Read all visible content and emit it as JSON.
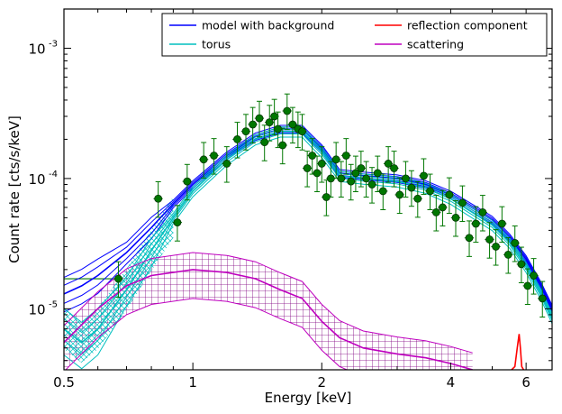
{
  "chart_data": {
    "type": "line",
    "xlabel": "Energy [keV]",
    "ylabel": "Count rate [cts/s/keV]",
    "xscale": "log",
    "yscale": "log",
    "xlim": [
      0.5,
      6.9
    ],
    "ylim": [
      3.4e-06,
      0.002
    ],
    "x_ticks": [
      {
        "value": 0.5,
        "label": "0.5"
      },
      {
        "value": 1,
        "label": "1"
      },
      {
        "value": 2,
        "label": "2"
      },
      {
        "value": 4,
        "label": "4"
      },
      {
        "value": 6,
        "label": "6"
      }
    ],
    "y_ticks": [
      {
        "value": 1e-05,
        "label": "10",
        "exp": "-5"
      },
      {
        "value": 0.0001,
        "label": "10",
        "exp": "-4"
      },
      {
        "value": 0.001,
        "label": "10",
        "exp": "-3"
      }
    ],
    "legend": {
      "placement": "top-right",
      "columns": 2,
      "entries": [
        {
          "label": "model with background",
          "color": "#0000ff"
        },
        {
          "label": "reflection component",
          "color": "#ff0000"
        },
        {
          "label": "torus",
          "color": "#00bfbf"
        },
        {
          "label": "scattering",
          "color": "#bf00bf"
        }
      ]
    },
    "colors": {
      "data": "#007700",
      "data_edge": "#003300",
      "hatch": "#800080"
    },
    "series": [
      {
        "name": "model with background",
        "color": "#0000ff",
        "x": [
          0.5,
          0.55,
          0.6,
          0.7,
          0.8,
          0.9,
          1.0,
          1.2,
          1.4,
          1.6,
          1.8,
          1.9,
          2.0,
          2.2,
          2.5,
          3.0,
          3.5,
          4.0,
          5.0,
          5.5,
          6.0,
          6.5,
          6.9
        ],
        "y": [
          1.3e-05,
          1.5e-05,
          1.8e-05,
          2.7e-05,
          4.2e-05,
          6.4e-05,
          9e-05,
          0.00015,
          0.00021,
          0.00024,
          0.00024,
          0.0002,
          0.00017,
          0.00011,
          0.000105,
          0.0001,
          9e-05,
          7.5e-05,
          4.8e-05,
          3.5e-05,
          2.4e-05,
          1.5e-05,
          1e-05
        ]
      },
      {
        "name": "torus",
        "color": "#00bfbf",
        "x": [
          0.5,
          0.55,
          0.6,
          0.7,
          0.8,
          0.9,
          1.0,
          1.2,
          1.4,
          1.6,
          1.8,
          1.9,
          2.0,
          2.2,
          2.5,
          3.0,
          3.5,
          4.0,
          5.0,
          5.5,
          6.0,
          6.5,
          6.9
        ],
        "y": [
          7e-06,
          5.5e-06,
          7e-06,
          1.4e-05,
          2.8e-05,
          5e-05,
          8e-05,
          0.00014,
          0.0002,
          0.00023,
          0.00023,
          0.00019,
          0.00016,
          0.000105,
          0.0001,
          9.5e-05,
          8.5e-05,
          7e-05,
          4.4e-05,
          3.2e-05,
          2.1e-05,
          1.3e-05,
          8.5e-06
        ]
      },
      {
        "name": "scattering",
        "color": "#bf00bf",
        "x": [
          0.5,
          0.6,
          0.7,
          0.8,
          1.0,
          1.2,
          1.4,
          1.6,
          1.8,
          2.0,
          2.2,
          2.5,
          3.0,
          3.5,
          4.0,
          4.5
        ],
        "y": [
          5.5e-06,
          1e-05,
          1.5e-05,
          1.8e-05,
          2e-05,
          1.9e-05,
          1.7e-05,
          1.4e-05,
          1.2e-05,
          8e-06,
          6e-06,
          5e-06,
          4.5e-06,
          4.2e-06,
          3.8e-06,
          3.4e-06
        ]
      },
      {
        "name": "reflection component",
        "color": "#ff0000",
        "x": [
          5.55,
          5.65,
          5.72,
          5.78,
          5.82,
          5.86,
          5.92
        ],
        "y": [
          3.4e-06,
          3.6e-06,
          5e-06,
          6.4e-06,
          5e-06,
          3.6e-06,
          3.4e-06
        ]
      }
    ],
    "data_points": {
      "x": [
        0.67,
        0.83,
        0.92,
        0.97,
        1.06,
        1.12,
        1.2,
        1.27,
        1.33,
        1.38,
        1.43,
        1.47,
        1.51,
        1.55,
        1.58,
        1.62,
        1.66,
        1.71,
        1.76,
        1.8,
        1.85,
        1.9,
        1.95,
        2.0,
        2.05,
        2.1,
        2.16,
        2.22,
        2.28,
        2.34,
        2.4,
        2.47,
        2.54,
        2.62,
        2.7,
        2.78,
        2.86,
        2.95,
        3.04,
        3.14,
        3.24,
        3.35,
        3.46,
        3.58,
        3.7,
        3.83,
        3.97,
        4.11,
        4.26,
        4.42,
        4.58,
        4.75,
        4.93,
        5.1,
        5.27,
        5.45,
        5.65,
        5.85,
        6.05,
        6.25,
        6.55
      ],
      "y": [
        1.7e-05,
        7e-05,
        4.6e-05,
        9.5e-05,
        0.00014,
        0.00015,
        0.00013,
        0.0002,
        0.00023,
        0.00026,
        0.00029,
        0.00019,
        0.00027,
        0.0003,
        0.00024,
        0.00018,
        0.00033,
        0.00026,
        0.00024,
        0.00023,
        0.00012,
        0.00015,
        0.00011,
        0.00013,
        7.2e-05,
        0.0001,
        0.00014,
        0.0001,
        0.00015,
        9.5e-05,
        0.00011,
        0.00012,
        0.0001,
        9e-05,
        0.00011,
        8e-05,
        0.00013,
        0.00012,
        7.5e-05,
        0.0001,
        8.5e-05,
        7e-05,
        0.000105,
        8e-05,
        5.5e-05,
        6e-05,
        7.5e-05,
        5e-05,
        6.5e-05,
        3.5e-05,
        4.5e-05,
        5.5e-05,
        3.4e-05,
        3e-05,
        4.5e-05,
        2.6e-05,
        3.2e-05,
        2.2e-05,
        1.5e-05,
        1.8e-05,
        1.2e-05
      ],
      "yerr_lo_factor": 0.72,
      "yerr_hi_factor": 1.35
    }
  }
}
